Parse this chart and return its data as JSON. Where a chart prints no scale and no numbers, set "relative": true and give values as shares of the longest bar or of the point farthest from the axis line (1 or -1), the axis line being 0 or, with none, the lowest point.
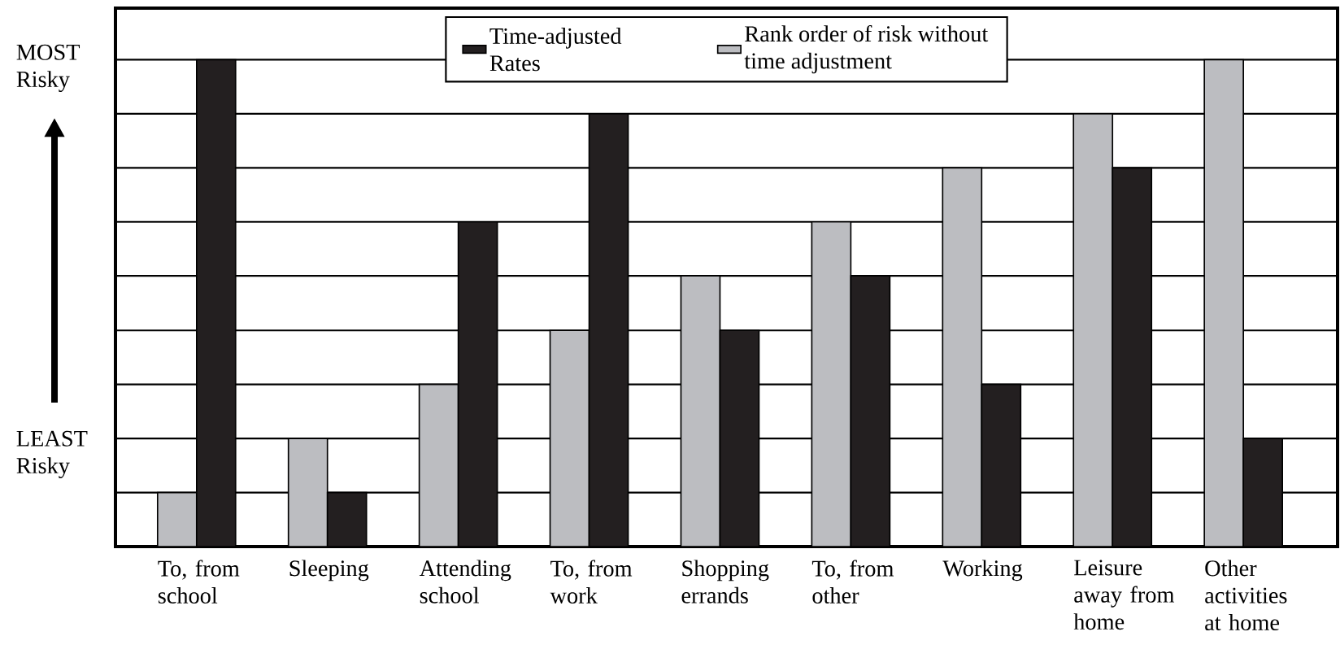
{
  "chart_data": {
    "type": "bar",
    "relative": true,
    "categories": [
      "To, from school",
      "Sleeping",
      "Attending school",
      "To, from work",
      "Shopping errands",
      "To, from other",
      "Working",
      "Leisure away from home",
      "Other activities at home"
    ],
    "series": [
      {
        "name": "Rank order of risk without time adjustment",
        "color": "#bcbdc1",
        "values": [
          0.111,
          0.222,
          0.333,
          0.444,
          0.556,
          0.667,
          0.778,
          0.889,
          1
        ]
      },
      {
        "name": "Time-adjusted Rates",
        "color": "#231f20",
        "values": [
          1,
          0.111,
          0.667,
          0.889,
          0.444,
          0.556,
          0.333,
          0.778,
          0.222
        ]
      }
    ],
    "grid": "y",
    "legend": "top",
    "annotations": [
      "MOST Risky",
      "LEAST Risky"
    ]
  }
}
